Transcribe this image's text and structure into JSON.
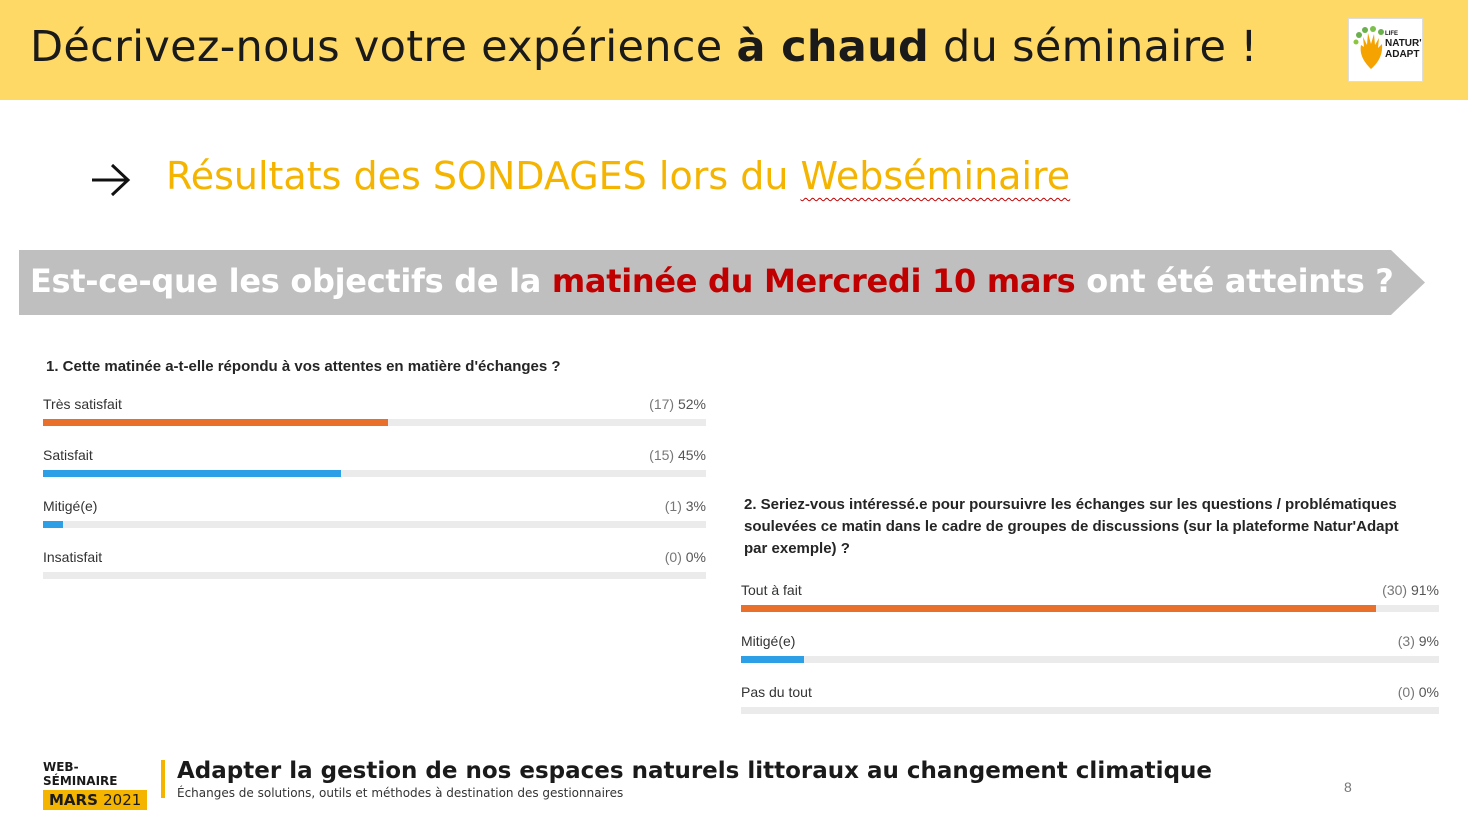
{
  "header": {
    "title_before": "Décrivez-nous votre expérience ",
    "title_bold": "à chaud",
    "title_after": " du séminaire !",
    "logo_line1": "LIFE",
    "logo_line2": "NATUR'",
    "logo_line3": "ADAPT"
  },
  "subtitle": {
    "text_before": "Résultats des SONDAGES lors du ",
    "text_wavy": "Webséminaire"
  },
  "question": {
    "before": "Est-ce-que les objectifs de la ",
    "highlight": "matinée du Mercredi 10 mars",
    "after": " ont été atteints ?"
  },
  "colors": {
    "accent_yellow": "#ffd966",
    "subtitle_gold": "#f4b400",
    "banner_gray": "#bfbfbf",
    "highlight_red": "#c00000",
    "bar_orange": "#e8702a",
    "bar_blue": "#2d9fe6",
    "track_gray": "#ebebeb"
  },
  "chart_data": [
    {
      "type": "bar",
      "title": "1. Cette matinée a-t-elle répondu à vos attentes en matière d'échanges ?",
      "categories": [
        "Très satisfait",
        "Satisfait",
        "Mitigé(e)",
        "Insatisfait"
      ],
      "counts": [
        17,
        15,
        1,
        0
      ],
      "values": [
        52,
        45,
        3,
        0
      ],
      "count_labels": [
        "(17)",
        "(15)",
        "(1)",
        "(0)"
      ],
      "percent_labels": [
        "52%",
        "45%",
        "3%",
        "0%"
      ],
      "bar_colors": [
        "#e8702a",
        "#2d9fe6",
        "#2d9fe6",
        "#2d9fe6"
      ],
      "ylim": [
        0,
        100
      ]
    },
    {
      "type": "bar",
      "title": "2. Seriez-vous intéressé.e pour poursuivre les échanges sur les questions / problématiques soulevées ce matin dans le cadre de groupes de discussions (sur la plateforme Natur'Adapt par exemple) ?",
      "categories": [
        "Tout à fait",
        "Mitigé(e)",
        "Pas du tout"
      ],
      "counts": [
        30,
        3,
        0
      ],
      "values": [
        91,
        9,
        0
      ],
      "count_labels": [
        "(30)",
        "(3)",
        "(0)"
      ],
      "percent_labels": [
        "91%",
        "9%",
        "0%"
      ],
      "bar_colors": [
        "#e8702a",
        "#2d9fe6",
        "#2d9fe6"
      ],
      "ylim": [
        0,
        100
      ]
    }
  ],
  "footer": {
    "tag_small": "WEB-SÉMINAIRE",
    "tag_month": "MARS",
    "tag_year": "2021",
    "title": "Adapter la gestion de nos espaces naturels littoraux au changement climatique",
    "subtitle": "Échanges de solutions, outils et méthodes à destination des gestionnaires",
    "page_number": "8"
  }
}
